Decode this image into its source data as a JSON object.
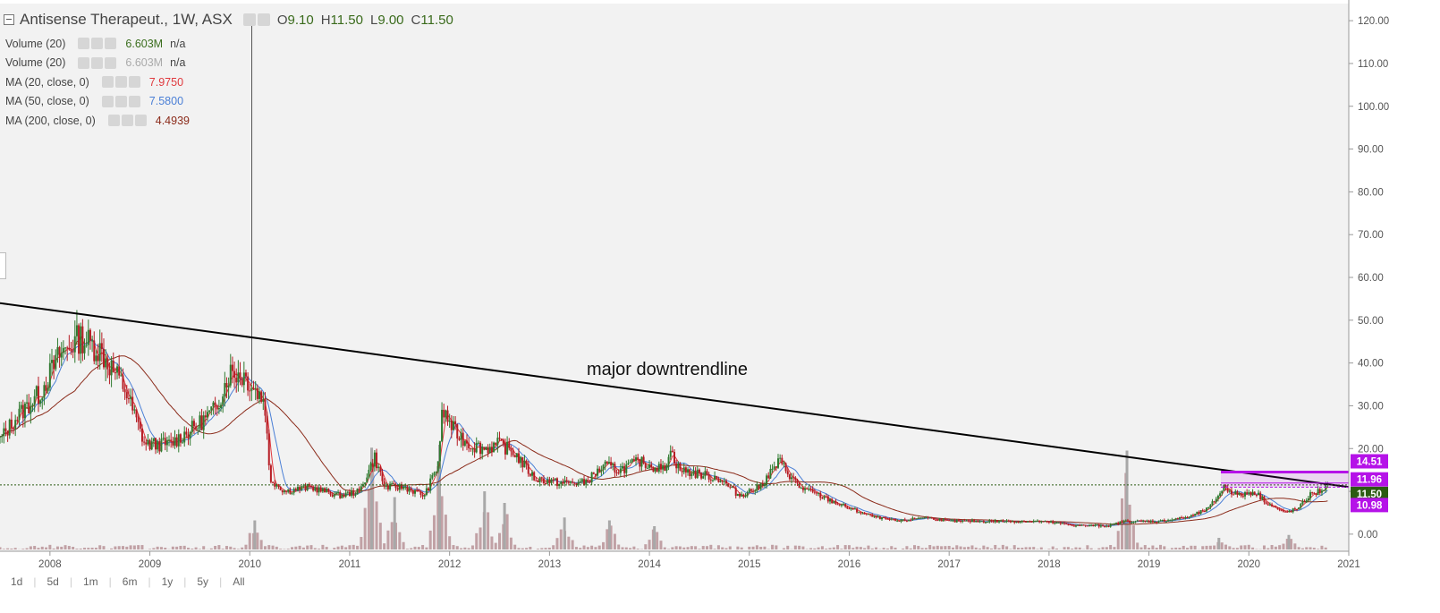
{
  "header": {
    "title": "Antisense Therapeut., 1W, ASX",
    "open_label": "O",
    "open": "9.10",
    "high_label": "H",
    "high": "11.50",
    "low_label": "L",
    "low": "9.00",
    "close_label": "C",
    "close": "11.50"
  },
  "legend": [
    {
      "label": "Volume (20)",
      "value": "6.603M",
      "extra": "n/a",
      "color": "#3b6e1e"
    },
    {
      "label": "Volume (20)",
      "value": "6.603M",
      "extra": "n/a",
      "color": "#aaaaaa"
    },
    {
      "label": "MA (20, close, 0)",
      "value": "7.9750",
      "extra": "",
      "color": "#e0393e"
    },
    {
      "label": "MA (50, close, 0)",
      "value": "7.5800",
      "extra": "",
      "color": "#4a7fd6"
    },
    {
      "label": "MA (200, close, 0)",
      "value": "4.4939",
      "extra": "",
      "color": "#8b2b1a"
    }
  ],
  "periods": [
    "1d",
    "5d",
    "1m",
    "6m",
    "1y",
    "5y",
    "All"
  ],
  "chart_data": {
    "type": "candlestick",
    "x_ticks": [
      "2008",
      "2009",
      "2010",
      "2011",
      "2012",
      "2013",
      "2014",
      "2015",
      "2016",
      "2017",
      "2018",
      "2019",
      "2020",
      "2021"
    ],
    "y_ticks": [
      "0.00",
      "10.00",
      "20.00",
      "30.00",
      "40.00",
      "50.00",
      "60.00",
      "70.00",
      "80.00",
      "90.00",
      "100.00",
      "110.00",
      "120.00"
    ],
    "xlim": [
      2007.5,
      2021.0
    ],
    "ylim": [
      -4,
      124
    ],
    "price_keypoints": [
      [
        2007.5,
        22
      ],
      [
        2007.65,
        27
      ],
      [
        2007.9,
        33
      ],
      [
        2008.1,
        42
      ],
      [
        2008.3,
        46
      ],
      [
        2008.5,
        43
      ],
      [
        2008.75,
        34
      ],
      [
        2008.95,
        21
      ],
      [
        2009.2,
        21
      ],
      [
        2009.45,
        25
      ],
      [
        2009.65,
        29
      ],
      [
        2009.8,
        38
      ],
      [
        2009.95,
        37
      ],
      [
        2010.15,
        31
      ],
      [
        2010.2,
        13
      ],
      [
        2010.35,
        10
      ],
      [
        2010.6,
        11
      ],
      [
        2010.9,
        9
      ],
      [
        2011.1,
        10
      ],
      [
        2011.25,
        18
      ],
      [
        2011.35,
        11
      ],
      [
        2011.55,
        11
      ],
      [
        2011.75,
        9
      ],
      [
        2011.88,
        16
      ],
      [
        2011.93,
        29
      ],
      [
        2012.05,
        24
      ],
      [
        2012.2,
        21
      ],
      [
        2012.35,
        20
      ],
      [
        2012.5,
        21
      ],
      [
        2012.65,
        19
      ],
      [
        2012.85,
        13
      ],
      [
        2013.1,
        12
      ],
      [
        2013.35,
        12
      ],
      [
        2013.55,
        16
      ],
      [
        2013.7,
        15
      ],
      [
        2013.9,
        17
      ],
      [
        2014.15,
        15
      ],
      [
        2014.2,
        20
      ],
      [
        2014.3,
        15
      ],
      [
        2014.5,
        14
      ],
      [
        2014.7,
        13
      ],
      [
        2014.9,
        9
      ],
      [
        2015.1,
        11
      ],
      [
        2015.3,
        17
      ],
      [
        2015.5,
        11
      ],
      [
        2015.8,
        8
      ],
      [
        2016.0,
        6
      ],
      [
        2016.25,
        4
      ],
      [
        2016.5,
        3
      ],
      [
        2016.75,
        4
      ],
      [
        2017.0,
        3
      ],
      [
        2017.5,
        3
      ],
      [
        2017.9,
        3
      ],
      [
        2018.3,
        2
      ],
      [
        2018.6,
        2
      ],
      [
        2018.75,
        3
      ],
      [
        2018.9,
        3
      ],
      [
        2019.1,
        3
      ],
      [
        2019.4,
        4
      ],
      [
        2019.6,
        6
      ],
      [
        2019.75,
        11
      ],
      [
        2019.9,
        9
      ],
      [
        2020.05,
        10
      ],
      [
        2020.2,
        7
      ],
      [
        2020.35,
        5
      ],
      [
        2020.5,
        6
      ],
      [
        2020.6,
        9
      ],
      [
        2020.7,
        10
      ],
      [
        2020.8,
        11.5
      ]
    ],
    "volume_spikes": [
      {
        "x": 2010.05,
        "v": 10
      },
      {
        "x": 2011.22,
        "v": 35
      },
      {
        "x": 2011.45,
        "v": 18
      },
      {
        "x": 2011.9,
        "v": 36
      },
      {
        "x": 2012.35,
        "v": 20
      },
      {
        "x": 2012.55,
        "v": 16
      },
      {
        "x": 2013.15,
        "v": 11
      },
      {
        "x": 2013.6,
        "v": 10
      },
      {
        "x": 2014.05,
        "v": 8
      },
      {
        "x": 2018.78,
        "v": 34
      },
      {
        "x": 2019.7,
        "v": 4
      },
      {
        "x": 2020.4,
        "v": 5
      }
    ],
    "volume_max": 40,
    "downtrendline": [
      [
        2007.5,
        54
      ],
      [
        2021.0,
        11
      ]
    ],
    "hline_level": 11.5,
    "purple_band": {
      "x_start": 2019.72,
      "x_end": 2021.0,
      "top": 14.51,
      "mid": 11.96,
      "bottom": 10.98
    },
    "price_labels": [
      {
        "value": "14.51",
        "color": "#b513e8"
      },
      {
        "value": "11.96",
        "color": "#b513e8"
      },
      {
        "value": "11.50",
        "color": "#2b5b12"
      },
      {
        "value": "10.98",
        "color": "#b513e8"
      }
    ],
    "annotation": "major downtrendline",
    "colors": {
      "up": "#2f7a2f",
      "down": "#b61c24",
      "ma20": "#e0393e",
      "ma50": "#4a7fd6",
      "ma200": "#8b2b1a",
      "volume": "#c1a1a5"
    },
    "price_wick": {
      "x": 2010.02,
      "top": 121
    }
  }
}
